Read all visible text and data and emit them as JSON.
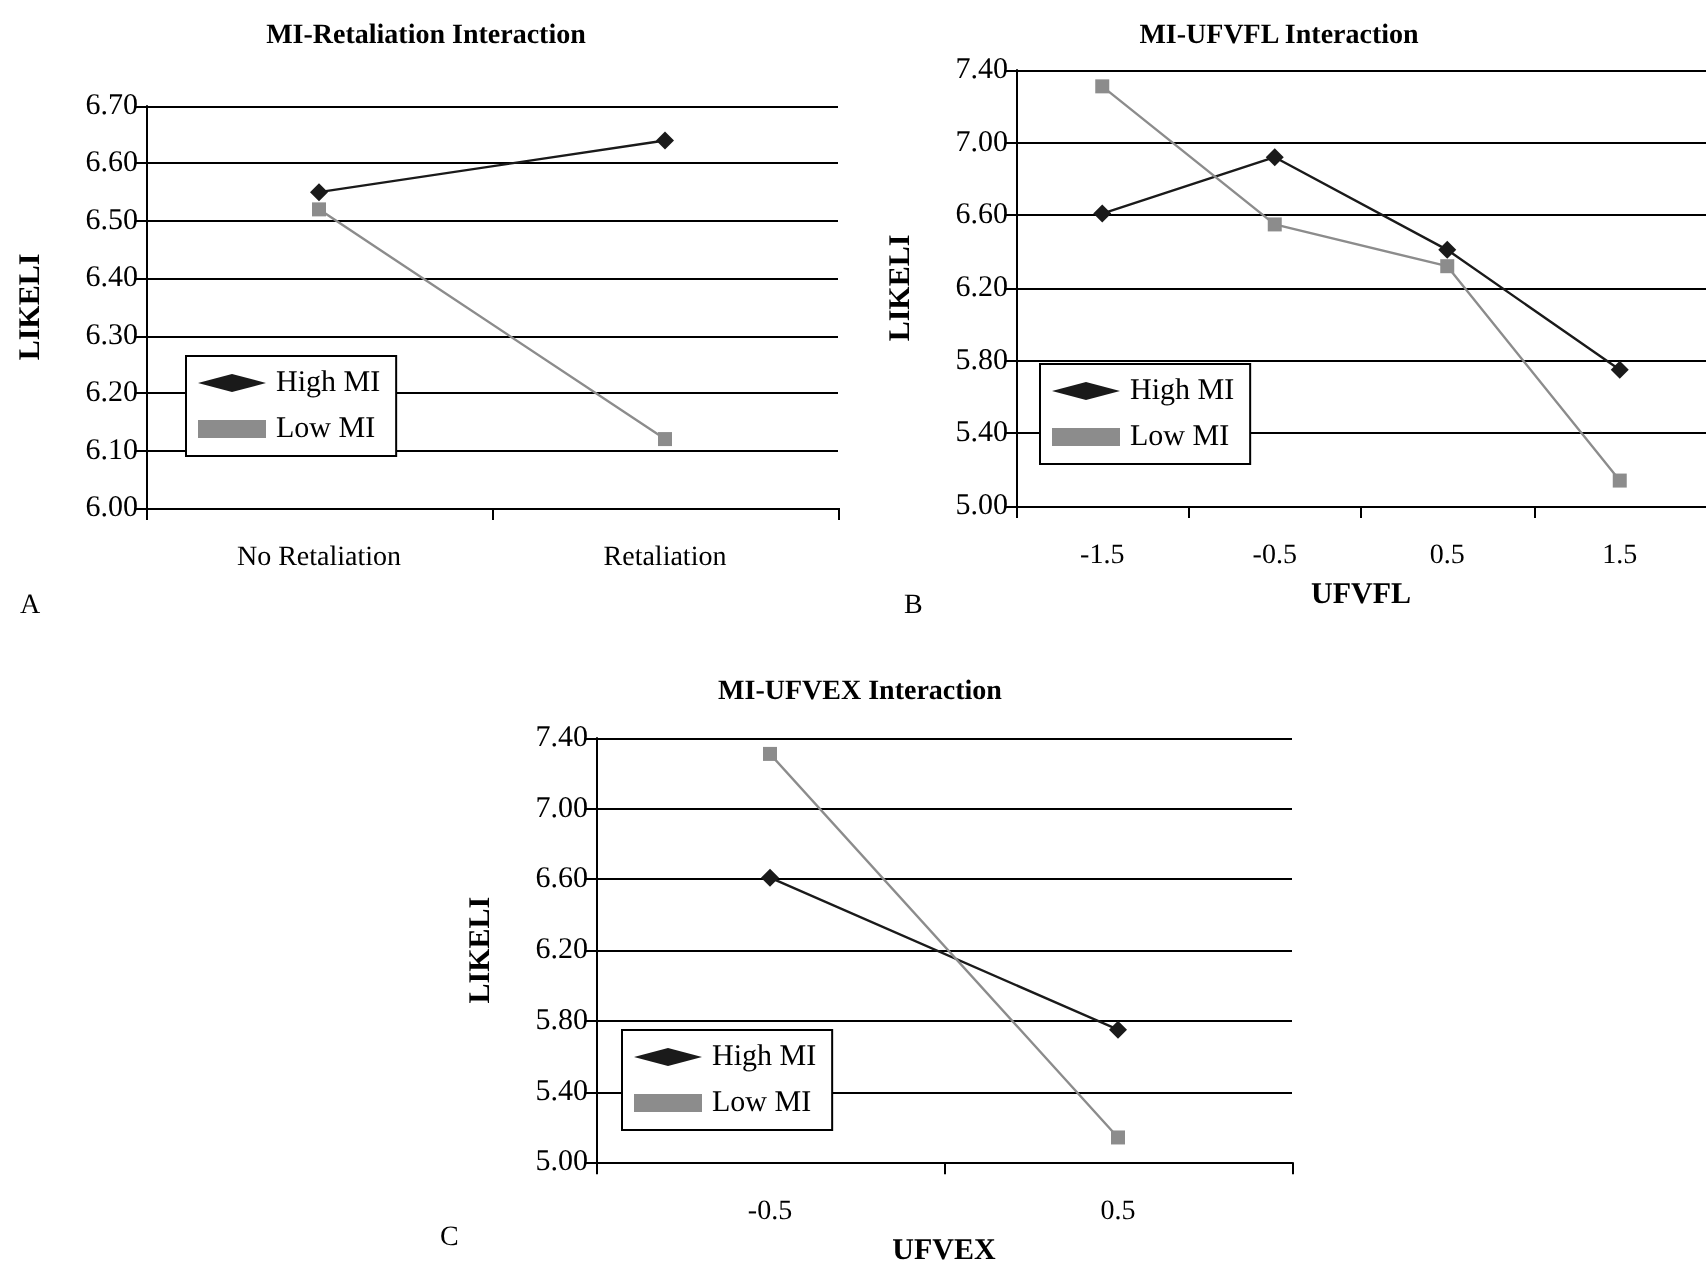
{
  "chart_data": [
    {
      "type": "line",
      "title": "MI-Retaliation Interaction",
      "ylabel": "LIKELI",
      "categories": [
        "No Retaliation",
        "Retaliation"
      ],
      "series": [
        {
          "name": "High MI",
          "color": "#1a1a1a",
          "marker": "diamond",
          "values": [
            6.55,
            6.64
          ]
        },
        {
          "name": "Low MI",
          "color": "#8c8c8c",
          "marker": "square",
          "values": [
            6.52,
            6.12
          ]
        }
      ],
      "ylim": [
        6.0,
        6.7
      ],
      "yticks": [
        {
          "value": 6.0,
          "label": "6.00"
        },
        {
          "value": 6.1,
          "label": "6.10"
        },
        {
          "value": 6.2,
          "label": "6.20"
        },
        {
          "value": 6.3,
          "label": "6.30"
        },
        {
          "value": 6.4,
          "label": "6.40"
        },
        {
          "value": 6.5,
          "label": "6.50"
        },
        {
          "value": 6.6,
          "label": "6.60"
        },
        {
          "value": 6.7,
          "label": "6.70"
        }
      ],
      "grid": "y",
      "legend": "bottom left",
      "annotations": [
        "A"
      ]
    },
    {
      "type": "line",
      "title": "MI-UFVFL Interaction",
      "xlabel": "UFVFL",
      "ylabel": "LIKELI",
      "categories": [
        "-1.5",
        "-0.5",
        "0.5",
        "1.5"
      ],
      "series": [
        {
          "name": "High MI",
          "color": "#1a1a1a",
          "marker": "diamond",
          "values": [
            6.61,
            6.92,
            6.41,
            5.75
          ]
        },
        {
          "name": "Low MI",
          "color": "#8c8c8c",
          "marker": "square",
          "values": [
            7.31,
            6.55,
            6.32,
            5.14
          ]
        }
      ],
      "ylim": [
        5.0,
        7.4
      ],
      "yticks": [
        {
          "value": 5.0,
          "label": "5.00"
        },
        {
          "value": 5.4,
          "label": "5.40"
        },
        {
          "value": 5.8,
          "label": "5.80"
        },
        {
          "value": 6.2,
          "label": "6.20"
        },
        {
          "value": 6.6,
          "label": "6.60"
        },
        {
          "value": 7.0,
          "label": "7.00"
        },
        {
          "value": 7.4,
          "label": "7.40"
        }
      ],
      "grid": "y",
      "legend": "bottom left",
      "annotations": [
        "B"
      ]
    },
    {
      "type": "line",
      "title": "MI-UFVEX Interaction",
      "xlabel": "UFVEX",
      "ylabel": "LIKELI",
      "categories": [
        "-0.5",
        "0.5"
      ],
      "series": [
        {
          "name": "High MI",
          "color": "#1a1a1a",
          "marker": "diamond",
          "values": [
            6.61,
            5.75
          ]
        },
        {
          "name": "Low MI",
          "color": "#8c8c8c",
          "marker": "square",
          "values": [
            7.31,
            5.14
          ]
        }
      ],
      "ylim": [
        5.0,
        7.4
      ],
      "yticks": [
        {
          "value": 5.0,
          "label": "5.00"
        },
        {
          "value": 5.4,
          "label": "5.40"
        },
        {
          "value": 5.8,
          "label": "5.80"
        },
        {
          "value": 6.2,
          "label": "6.20"
        },
        {
          "value": 6.6,
          "label": "6.60"
        },
        {
          "value": 7.0,
          "label": "7.00"
        },
        {
          "value": 7.4,
          "label": "7.40"
        }
      ],
      "grid": "y",
      "legend": "bottom left",
      "annotations": [
        "C"
      ]
    }
  ]
}
